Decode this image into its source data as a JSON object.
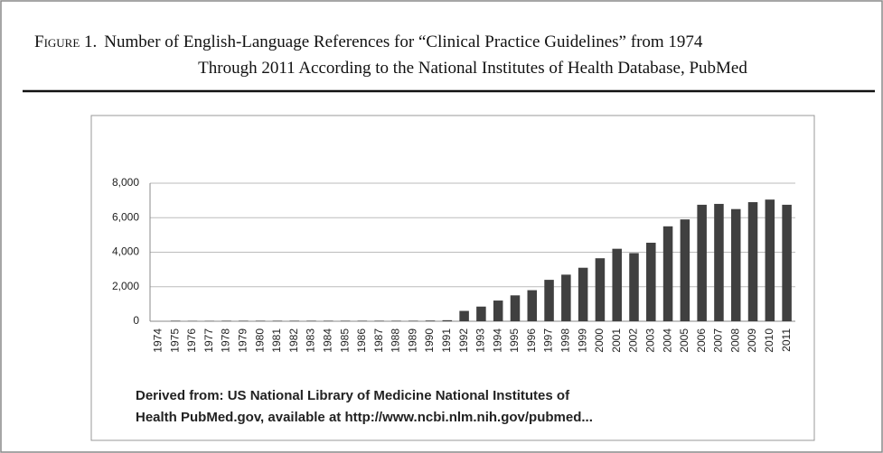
{
  "chart_data": {
    "type": "bar",
    "figure_label": "Figure 1.",
    "title_lines": [
      "Number of English-Language References for “Clinical Practice Guidelines” from 1974",
      "Through 2011 According to the National Institutes of Health Database, PubMed"
    ],
    "categories": [
      "1974",
      "1975",
      "1976",
      "1977",
      "1978",
      "1979",
      "1980",
      "1981",
      "1982",
      "1983",
      "1984",
      "1985",
      "1986",
      "1987",
      "1988",
      "1989",
      "1990",
      "1991",
      "1992",
      "1993",
      "1994",
      "1995",
      "1996",
      "1997",
      "1998",
      "1999",
      "2000",
      "2001",
      "2002",
      "2003",
      "2004",
      "2005",
      "2006",
      "2007",
      "2008",
      "2009",
      "2010",
      "2011"
    ],
    "values": [
      0,
      30,
      20,
      20,
      30,
      30,
      30,
      30,
      30,
      30,
      30,
      30,
      30,
      30,
      30,
      30,
      40,
      60,
      600,
      850,
      1200,
      1500,
      1800,
      2400,
      2700,
      3100,
      3650,
      4200,
      3950,
      4550,
      5500,
      5900,
      6750,
      6800,
      6500,
      6900,
      7050,
      6750
    ],
    "color": "#404040",
    "ylim": [
      0,
      8000
    ],
    "yticks": [
      0,
      {
        "value": 2000,
        "label": "2,000"
      },
      {
        "value": 4000,
        "label": "4,000"
      },
      {
        "value": 6000,
        "label": "6,000"
      },
      {
        "value": 8000,
        "label": "8,000"
      }
    ],
    "grid": true,
    "note_lines": [
      "Derived from: US National Library of Medicine National Institutes of",
      "Health PubMed.gov, available at http://www.ncbi.nlm.nih.gov/pubmed..."
    ]
  }
}
